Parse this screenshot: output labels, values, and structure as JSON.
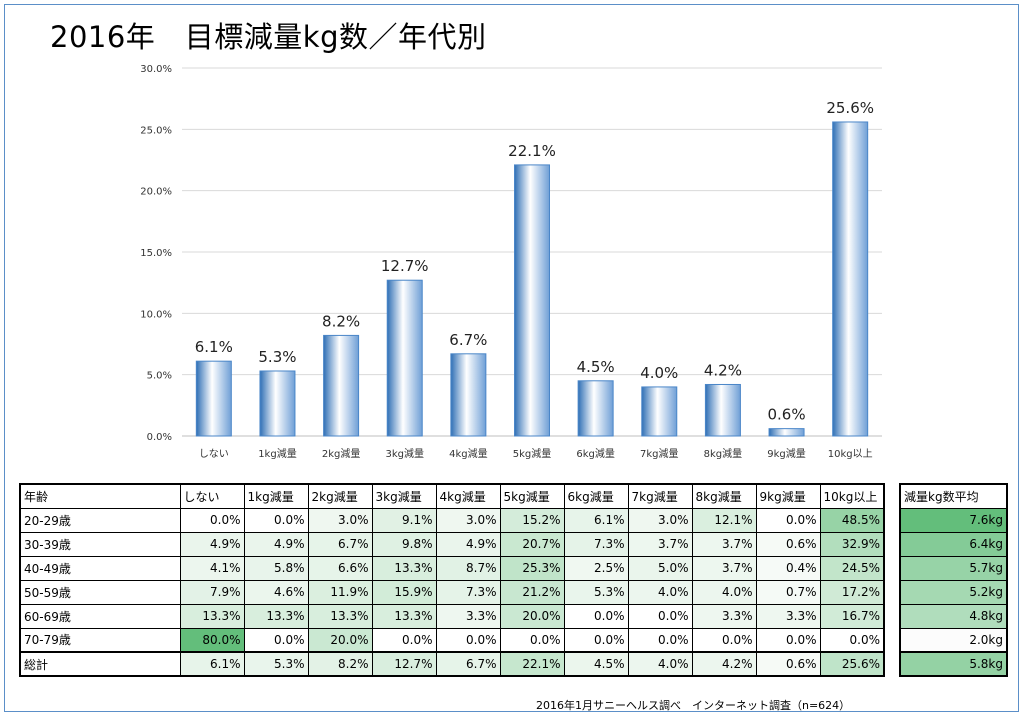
{
  "title": "2016年　目標減量kg数／年代別",
  "source": "2016年1月サニーヘルス調べ　インターネット調査（n=624）",
  "chart_data": {
    "type": "bar",
    "categories": [
      "しない",
      "1kg減量",
      "2kg減量",
      "3kg減量",
      "4kg減量",
      "5kg減量",
      "6kg減量",
      "7kg減量",
      "8kg減量",
      "9kg減量",
      "10kg以上"
    ],
    "values": [
      6.1,
      5.3,
      8.2,
      12.7,
      6.7,
      22.1,
      4.5,
      4.0,
      4.2,
      0.6,
      25.6
    ],
    "data_labels": [
      "6.1%",
      "5.3%",
      "8.2%",
      "12.7%",
      "6.7%",
      "22.1%",
      "4.5%",
      "4.0%",
      "4.2%",
      "0.6%",
      "25.6%"
    ],
    "ylim": [
      0,
      30
    ],
    "yticks": [
      0,
      5,
      10,
      15,
      20,
      25,
      30
    ],
    "ytick_labels": [
      "0.0%",
      "5.0%",
      "10.0%",
      "15.0%",
      "20.0%",
      "25.0%",
      "30.0%"
    ],
    "grid": true,
    "bar_color": "#4a86c8"
  },
  "table": {
    "corner": "年齢",
    "columns": [
      "しない",
      "1kg減量",
      "2kg減量",
      "3kg減量",
      "4kg減量",
      "5kg減量",
      "6kg減量",
      "7kg減量",
      "8kg減量",
      "9kg減量",
      "10kg以上"
    ],
    "rows": [
      {
        "label": "20-29歳",
        "values": [
          "0.0%",
          "0.0%",
          "3.0%",
          "9.1%",
          "3.0%",
          "15.2%",
          "6.1%",
          "3.0%",
          "12.1%",
          "0.0%",
          "48.5%"
        ]
      },
      {
        "label": "30-39歳",
        "values": [
          "4.9%",
          "4.9%",
          "6.7%",
          "9.8%",
          "4.9%",
          "20.7%",
          "7.3%",
          "3.7%",
          "3.7%",
          "0.6%",
          "32.9%"
        ]
      },
      {
        "label": "40-49歳",
        "values": [
          "4.1%",
          "5.8%",
          "6.6%",
          "13.3%",
          "8.7%",
          "25.3%",
          "2.5%",
          "5.0%",
          "3.7%",
          "0.4%",
          "24.5%"
        ]
      },
      {
        "label": "50-59歳",
        "values": [
          "7.9%",
          "4.6%",
          "11.9%",
          "15.9%",
          "7.3%",
          "21.2%",
          "5.3%",
          "4.0%",
          "4.0%",
          "0.7%",
          "17.2%"
        ]
      },
      {
        "label": "60-69歳",
        "values": [
          "13.3%",
          "13.3%",
          "13.3%",
          "13.3%",
          "3.3%",
          "20.0%",
          "0.0%",
          "0.0%",
          "3.3%",
          "3.3%",
          "16.7%"
        ]
      },
      {
        "label": "70-79歳",
        "values": [
          "80.0%",
          "0.0%",
          "20.0%",
          "0.0%",
          "0.0%",
          "0.0%",
          "0.0%",
          "0.0%",
          "0.0%",
          "0.0%",
          "0.0%"
        ]
      }
    ],
    "total": {
      "label": "総計",
      "values": [
        "6.1%",
        "5.3%",
        "8.2%",
        "12.7%",
        "6.7%",
        "22.1%",
        "4.5%",
        "4.0%",
        "4.2%",
        "0.6%",
        "25.6%"
      ]
    }
  },
  "avg_table": {
    "header": "減量kg数平均",
    "values": [
      "7.6kg",
      "6.4kg",
      "5.7kg",
      "5.2kg",
      "4.8kg",
      "2.0kg"
    ],
    "total": "5.8kg"
  }
}
